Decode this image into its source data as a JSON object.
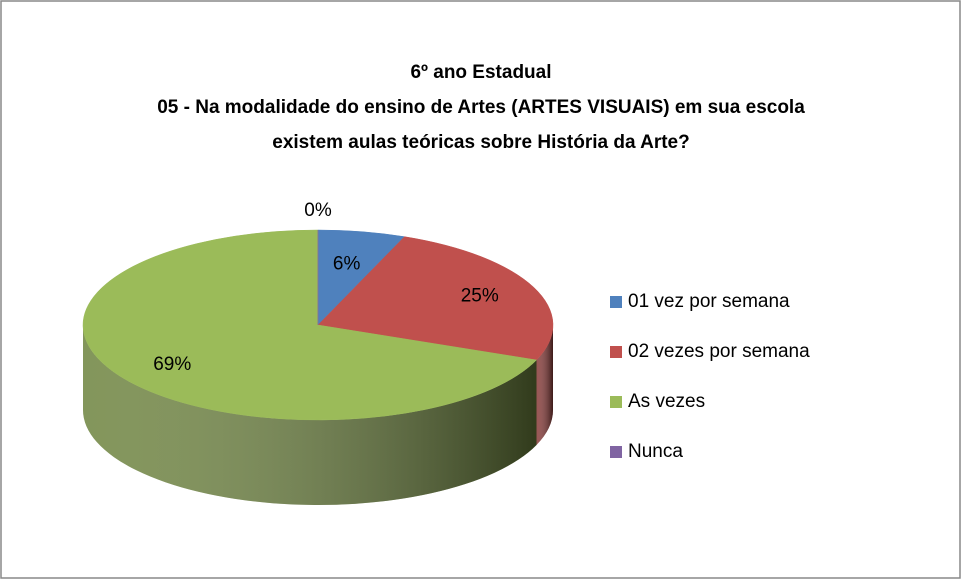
{
  "chart_data": {
    "type": "pie",
    "title": "6º ano Estadual",
    "subtitle": "05 - Na modalidade do ensino de Artes (ARTES VISUAIS) em sua escola existem aulas teóricas sobre História da Arte?",
    "categories": [
      "01 vez por semana",
      "02 vezes por semana",
      "As vezes",
      "Nunca"
    ],
    "values": [
      6,
      25,
      69,
      0
    ],
    "value_labels": [
      "6%",
      "25%",
      "69%",
      "0%"
    ],
    "colors": [
      "#4f81bd",
      "#c0504d",
      "#9bbb59",
      "#8064a2"
    ],
    "legend": "right"
  }
}
